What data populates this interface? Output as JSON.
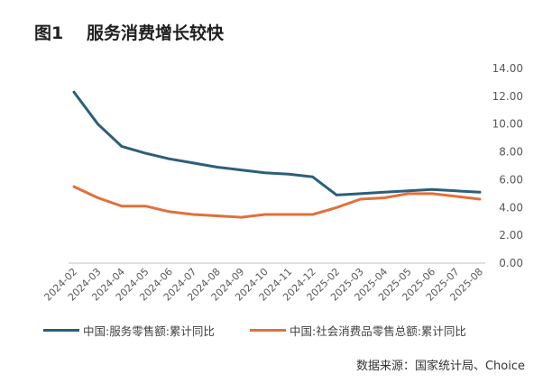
{
  "header": {
    "figure_label": "图1",
    "title": "服务消费增长较快"
  },
  "source_note": "数据来源：国家统计局、Choice",
  "colors": {
    "series_1": "#2b5f7b",
    "series_2": "#e2703a",
    "axis_text": "#595959",
    "gridline": "#d9d9d9"
  },
  "chart_data": {
    "type": "line",
    "title": "服务消费增长较快",
    "xlabel": "",
    "ylabel": "",
    "x": [
      "2024-02",
      "2024-03",
      "2024-04",
      "2024-05",
      "2024-06",
      "2024-07",
      "2024-08",
      "2024-09",
      "2024-10",
      "2024-11",
      "2024-12",
      "2025-02",
      "2025-03",
      "2025-04",
      "2025-05",
      "2025-06",
      "2025-07",
      "2025-08"
    ],
    "ylim": [
      0,
      14
    ],
    "y_ticks": [
      "0.00",
      "2.00",
      "4.00",
      "6.00",
      "8.00",
      "10.00",
      "12.00",
      "14.00"
    ],
    "grid": false,
    "legend_position": "bottom",
    "series": [
      {
        "name": "中国:服务零售额:累计同比",
        "color": "#2b5f7b",
        "values": [
          12.3,
          10.0,
          8.4,
          7.9,
          7.5,
          7.2,
          6.9,
          6.7,
          6.5,
          6.4,
          6.2,
          4.9,
          5.0,
          5.1,
          5.2,
          5.3,
          5.2,
          5.1
        ]
      },
      {
        "name": "中国:社会消费品零售总额:累计同比",
        "color": "#e2703a",
        "values": [
          5.5,
          4.7,
          4.1,
          4.1,
          3.7,
          3.5,
          3.4,
          3.3,
          3.5,
          3.5,
          3.5,
          4.0,
          4.6,
          4.7,
          5.0,
          5.0,
          4.8,
          4.6
        ]
      }
    ]
  }
}
